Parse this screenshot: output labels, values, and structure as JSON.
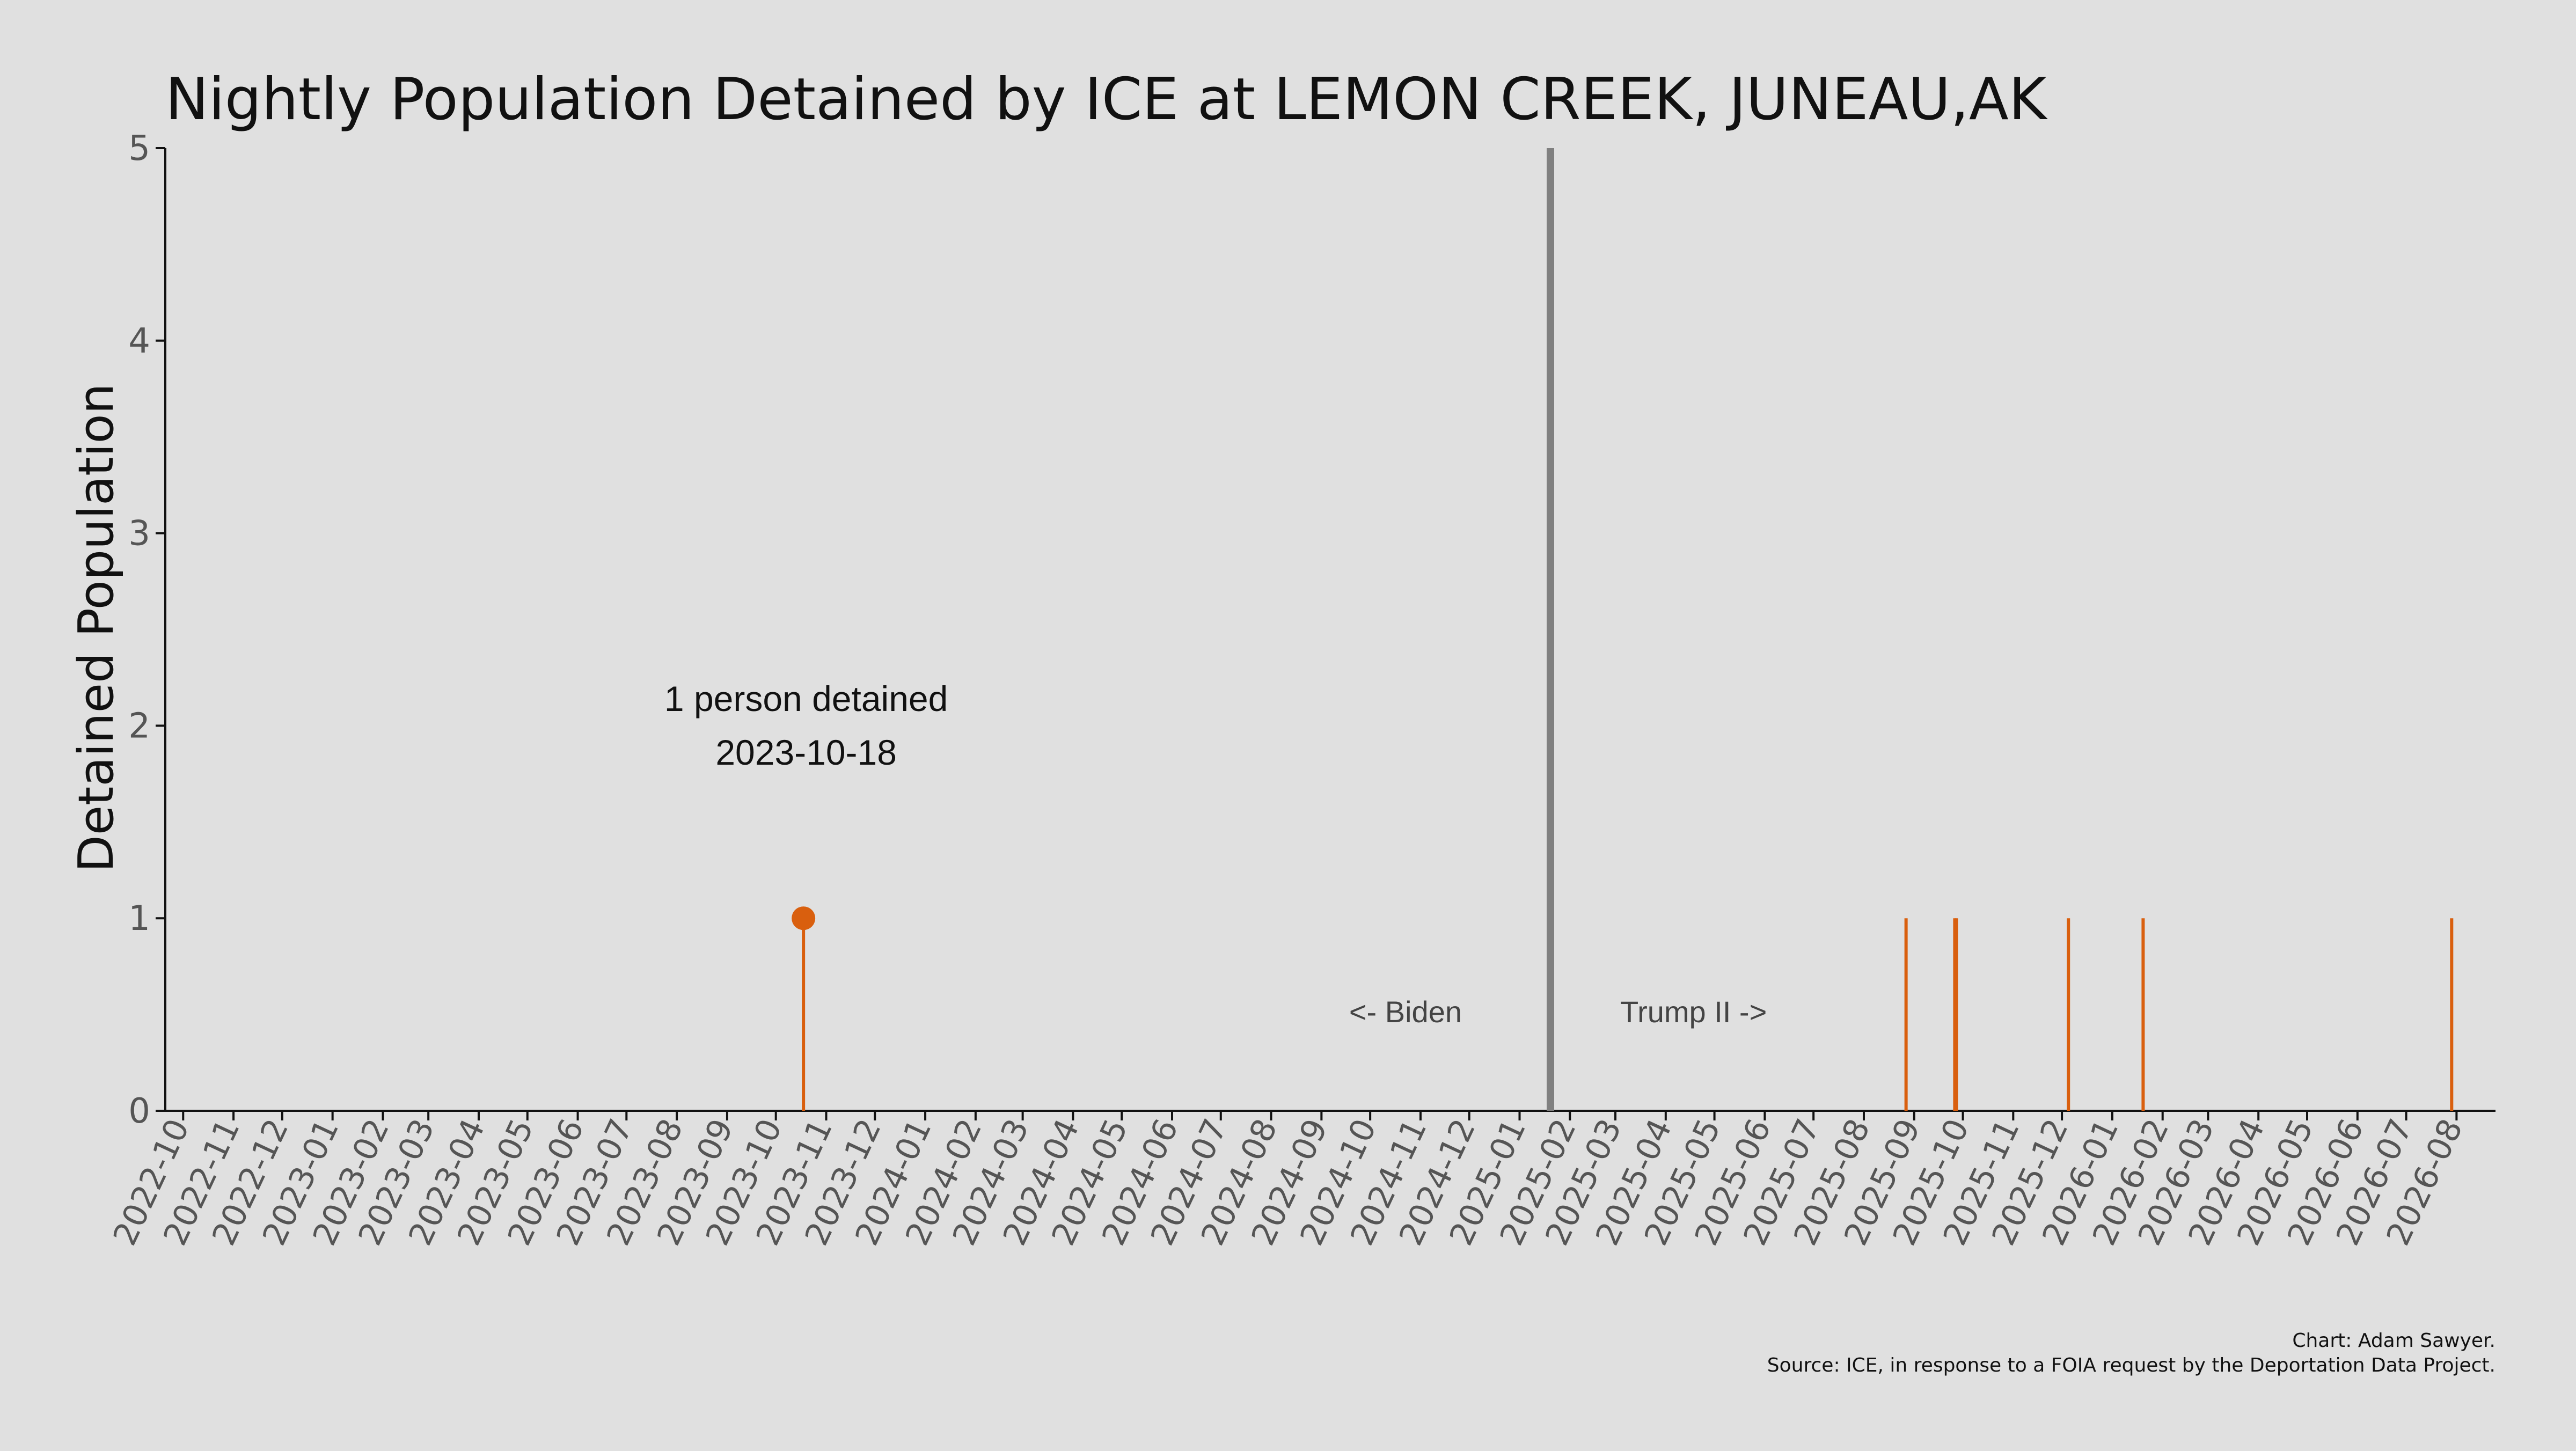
{
  "chart_data": {
    "type": "bar",
    "title": "Nightly Population Detained by ICE at LEMON CREEK, JUNEAU,AK",
    "xlabel": "",
    "ylabel": "Detained Population",
    "ylim": [
      0,
      5
    ],
    "yticks": [
      "0",
      "1",
      "2",
      "3",
      "4",
      "5"
    ],
    "x_range": [
      "2022-09-20",
      "2026-08-25"
    ],
    "xticks": [
      "2022-10",
      "2022-11",
      "2022-12",
      "2023-01",
      "2023-02",
      "2023-03",
      "2023-04",
      "2023-05",
      "2023-06",
      "2023-07",
      "2023-08",
      "2023-09",
      "2023-10",
      "2023-11",
      "2023-12",
      "2024-01",
      "2024-02",
      "2024-03",
      "2024-04",
      "2024-05",
      "2024-06",
      "2024-07",
      "2024-08",
      "2024-09",
      "2024-10",
      "2024-11",
      "2024-12",
      "2025-01",
      "2025-02",
      "2025-03",
      "2025-04",
      "2025-05",
      "2025-06",
      "2025-07",
      "2025-08",
      "2025-09",
      "2025-10",
      "2025-11",
      "2025-12",
      "2026-01",
      "2026-02",
      "2026-03",
      "2026-04",
      "2026-05",
      "2026-06",
      "2026-07",
      "2026-08"
    ],
    "series": [
      {
        "values": [
          {
            "date": "2023-10-18",
            "count": 1
          },
          {
            "date": "2025-08-27",
            "count": 1
          },
          {
            "date": "2025-09-26",
            "count": 1
          },
          {
            "date": "2025-09-27",
            "count": 1
          },
          {
            "date": "2025-12-05",
            "count": 1
          },
          {
            "date": "2026-01-20",
            "count": 1
          },
          {
            "date": "2026-07-29",
            "count": 1
          }
        ]
      }
    ],
    "highlight": {
      "date": "2023-10-18",
      "count": 1
    },
    "annotation": {
      "line1": "1 person detained",
      "line2": "2023-10-18"
    },
    "divider_date": "2025-01-20",
    "era_labels": {
      "left": "<- Biden",
      "right": "Trump II ->"
    },
    "credit": "Chart: Adam Sawyer.",
    "source": "Source: ICE, in response to a FOIA request by the Deportation Data Project.",
    "grid": false,
    "colors": {
      "bar": "#d95f0e",
      "divider": "#808080",
      "background": "#e0e0e0"
    }
  }
}
